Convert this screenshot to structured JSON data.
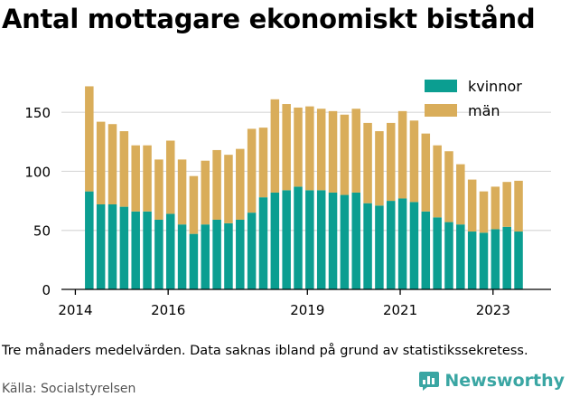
{
  "title": "Antal mottagare ekonomiskt bistånd",
  "footnote": "Tre månaders medelvärden. Data saknas ibland på grund av statistikssekretess.",
  "source": "Källa: Socialstyrelsen",
  "brand": "Newsworthy",
  "colors": {
    "kvinnor": "#0b9e91",
    "man": "#d9ad5a",
    "grid": "#d9d9d9",
    "brand": "#3aa6a3"
  },
  "chart_data": {
    "type": "bar",
    "stacked": true,
    "title": "Antal mottagare ekonomiskt bistånd",
    "xlabel": "",
    "ylabel": "",
    "ylim": [
      0,
      180
    ],
    "yticks": [
      0,
      50,
      100,
      150
    ],
    "xticks": [
      {
        "label": "2014",
        "x": 2014.0
      },
      {
        "label": "2016",
        "x": 2016.0
      },
      {
        "label": "2019",
        "x": 2019.0
      },
      {
        "label": "2021",
        "x": 2021.0
      },
      {
        "label": "2023",
        "x": 2023.0
      }
    ],
    "xlim": [
      2013.7,
      2024.25
    ],
    "grid": true,
    "legend_position": "top-right",
    "x": [
      2014.3,
      2014.55,
      2014.8,
      2015.05,
      2015.3,
      2015.55,
      2015.8,
      2016.05,
      2016.3,
      2016.55,
      2016.8,
      2017.05,
      2017.3,
      2017.55,
      2017.8,
      2018.05,
      2018.3,
      2018.55,
      2018.8,
      2019.05,
      2019.3,
      2019.55,
      2019.8,
      2020.05,
      2020.3,
      2020.55,
      2020.8,
      2021.05,
      2021.3,
      2021.55,
      2021.8,
      2022.05,
      2022.3,
      2022.55,
      2022.8,
      2023.05,
      2023.3,
      2023.55
    ],
    "series": [
      {
        "name": "kvinnor",
        "values": [
          83,
          72,
          72,
          70,
          66,
          66,
          59,
          64,
          55,
          47,
          55,
          59,
          56,
          59,
          65,
          78,
          82,
          84,
          87,
          84,
          84,
          82,
          80,
          82,
          73,
          71,
          75,
          77,
          74,
          66,
          61,
          57,
          55,
          49,
          48,
          51,
          53,
          49
        ]
      },
      {
        "name": "män",
        "values": [
          89,
          70,
          68,
          64,
          56,
          56,
          51,
          62,
          55,
          49,
          54,
          59,
          58,
          60,
          71,
          59,
          79,
          73,
          67,
          71,
          69,
          69,
          68,
          71,
          68,
          63,
          66,
          74,
          69,
          66,
          61,
          60,
          51,
          44,
          35,
          36,
          38,
          43
        ]
      }
    ]
  }
}
